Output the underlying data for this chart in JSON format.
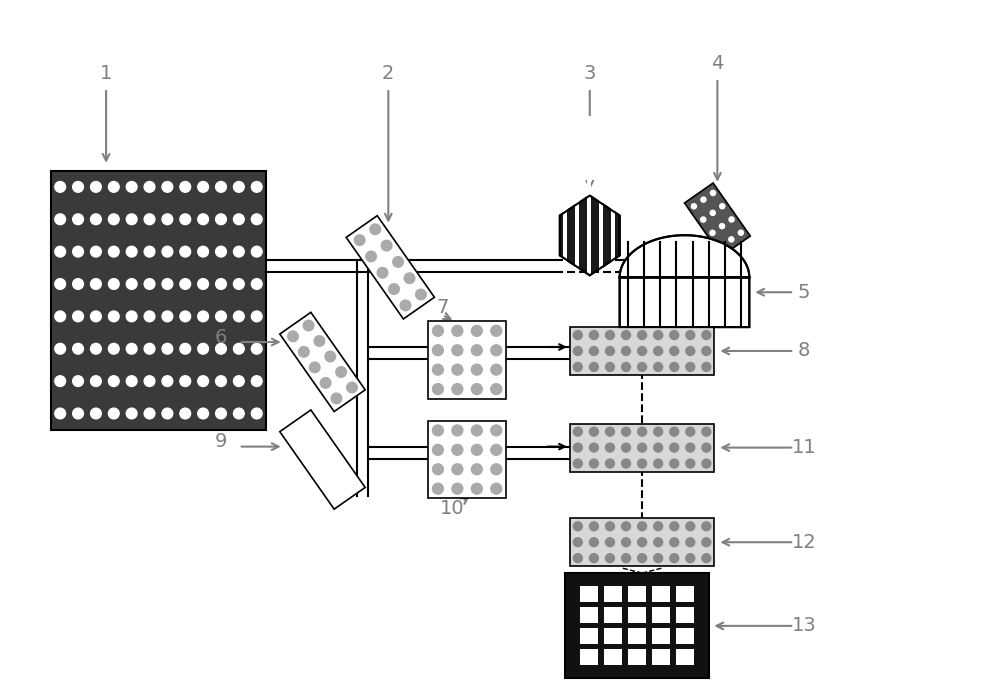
{
  "bg_color": "#ffffff",
  "line_color": "#000000",
  "gray_color": "#808080",
  "fig_width": 10.0,
  "fig_height": 6.97,
  "dpi": 100
}
